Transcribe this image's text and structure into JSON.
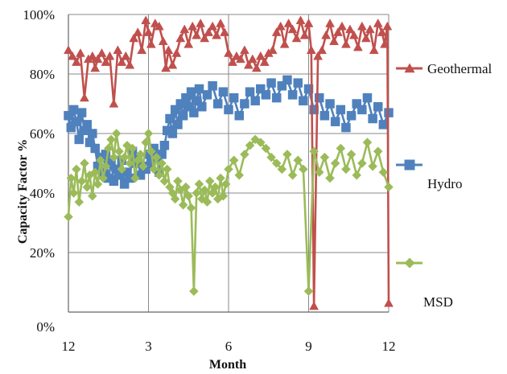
{
  "chart_data": {
    "type": "line",
    "xlabel": "Month",
    "ylabel": "Capacity Factor %",
    "x_ticks": [
      {
        "value": 0,
        "label": "12"
      },
      {
        "value": 3,
        "label": "3"
      },
      {
        "value": 6,
        "label": "6"
      },
      {
        "value": 9,
        "label": "9"
      },
      {
        "value": 12,
        "label": "12"
      }
    ],
    "y_tick_labels": [
      {
        "value": 0,
        "label": "0%"
      },
      {
        "value": 20,
        "label": "20%"
      },
      {
        "value": 40,
        "label": "40%"
      },
      {
        "value": 60,
        "label": "60%"
      },
      {
        "value": 80,
        "label": "80%"
      },
      {
        "value": 100,
        "label": "100%"
      }
    ],
    "y_gridlines": [
      20,
      40,
      60,
      80,
      100
    ],
    "xlim": [
      0,
      12
    ],
    "ylim": [
      0,
      100
    ],
    "grid": true,
    "legend_position": "right",
    "series": [
      {
        "name": "Geothermal",
        "color": "#C0504D",
        "marker": "triangle",
        "x": [
          0.0,
          0.15,
          0.3,
          0.45,
          0.6,
          0.75,
          0.9,
          1.0,
          1.1,
          1.25,
          1.4,
          1.55,
          1.7,
          1.85,
          2.0,
          2.15,
          2.3,
          2.45,
          2.6,
          2.75,
          2.9,
          3.0,
          3.1,
          3.25,
          3.4,
          3.55,
          3.65,
          3.75,
          3.9,
          4.05,
          4.2,
          4.35,
          4.5,
          4.65,
          4.8,
          4.95,
          5.1,
          5.25,
          5.4,
          5.55,
          5.7,
          5.85,
          6.0,
          6.15,
          6.3,
          6.45,
          6.6,
          6.75,
          6.9,
          7.05,
          7.2,
          7.35,
          7.5,
          7.65,
          7.8,
          7.95,
          8.1,
          8.25,
          8.4,
          8.55,
          8.7,
          8.85,
          9.0,
          9.1,
          9.2,
          9.35,
          9.5,
          9.65,
          9.8,
          9.95,
          10.1,
          10.25,
          10.4,
          10.55,
          10.7,
          10.85,
          11.0,
          11.15,
          11.3,
          11.45,
          11.6,
          11.75,
          11.85,
          11.95,
          12.0
        ],
        "values": [
          88,
          86,
          84,
          87,
          72,
          85,
          86,
          82,
          85,
          87,
          84,
          86,
          70,
          88,
          84,
          86,
          83,
          92,
          94,
          88,
          98,
          94,
          90,
          97,
          96,
          91,
          82,
          88,
          83,
          87,
          92,
          95,
          90,
          96,
          93,
          97,
          92,
          94,
          96,
          93,
          97,
          94,
          87,
          84,
          86,
          85,
          88,
          83,
          85,
          82,
          86,
          84,
          87,
          88,
          94,
          96,
          90,
          97,
          95,
          92,
          98,
          93,
          97,
          88,
          2,
          86,
          88,
          93,
          97,
          91,
          94,
          96,
          90,
          95,
          93,
          89,
          96,
          92,
          95,
          88,
          97,
          94,
          90,
          96,
          3
        ]
      },
      {
        "name": "Hydro",
        "color": "#4F81BD",
        "marker": "square",
        "x": [
          0.0,
          0.1,
          0.2,
          0.3,
          0.4,
          0.5,
          0.6,
          0.7,
          0.8,
          0.9,
          1.0,
          1.1,
          1.2,
          1.3,
          1.4,
          1.5,
          1.6,
          1.7,
          1.8,
          1.9,
          2.0,
          2.1,
          2.2,
          2.3,
          2.4,
          2.5,
          2.6,
          2.7,
          2.8,
          2.9,
          3.0,
          3.1,
          3.2,
          3.3,
          3.4,
          3.5,
          3.6,
          3.7,
          3.8,
          3.9,
          4.0,
          4.1,
          4.2,
          4.3,
          4.4,
          4.5,
          4.6,
          4.7,
          4.8,
          4.9,
          5.0,
          5.2,
          5.4,
          5.6,
          5.8,
          6.0,
          6.2,
          6.4,
          6.6,
          6.8,
          7.0,
          7.2,
          7.4,
          7.6,
          7.8,
          8.0,
          8.2,
          8.4,
          8.6,
          8.8,
          9.0,
          9.2,
          9.4,
          9.6,
          9.8,
          10.0,
          10.2,
          10.4,
          10.6,
          10.8,
          11.0,
          11.2,
          11.4,
          11.6,
          11.8,
          12.0
        ],
        "values": [
          66,
          62,
          68,
          64,
          58,
          67,
          61,
          63,
          57,
          60,
          55,
          49,
          52,
          47,
          53,
          45,
          50,
          44,
          48,
          46,
          51,
          43,
          47,
          45,
          54,
          50,
          52,
          46,
          49,
          48,
          53,
          50,
          55,
          52,
          47,
          53,
          56,
          61,
          65,
          60,
          68,
          63,
          70,
          66,
          72,
          69,
          74,
          67,
          71,
          75,
          69,
          73,
          76,
          70,
          74,
          68,
          72,
          66,
          70,
          74,
          71,
          75,
          73,
          77,
          72,
          76,
          78,
          73,
          77,
          71,
          75,
          68,
          72,
          66,
          70,
          64,
          68,
          62,
          66,
          70,
          68,
          72,
          65,
          69,
          63,
          67
        ]
      },
      {
        "name": "MSD",
        "color": "#9BBB59",
        "marker": "diamond",
        "x": [
          0.0,
          0.1,
          0.2,
          0.3,
          0.4,
          0.5,
          0.6,
          0.7,
          0.8,
          0.9,
          1.0,
          1.1,
          1.2,
          1.3,
          1.4,
          1.5,
          1.6,
          1.7,
          1.8,
          1.9,
          2.0,
          2.1,
          2.2,
          2.3,
          2.4,
          2.5,
          2.6,
          2.7,
          2.8,
          2.9,
          3.0,
          3.1,
          3.2,
          3.3,
          3.4,
          3.5,
          3.6,
          3.7,
          3.8,
          3.9,
          4.0,
          4.1,
          4.2,
          4.3,
          4.4,
          4.5,
          4.6,
          4.7,
          4.8,
          4.9,
          5.0,
          5.1,
          5.2,
          5.3,
          5.4,
          5.5,
          5.6,
          5.7,
          5.8,
          5.9,
          6.0,
          6.2,
          6.4,
          6.6,
          6.8,
          7.0,
          7.2,
          7.4,
          7.6,
          7.8,
          8.0,
          8.2,
          8.4,
          8.6,
          8.8,
          9.0,
          9.2,
          9.4,
          9.6,
          9.8,
          10.0,
          10.2,
          10.4,
          10.6,
          10.8,
          11.0,
          11.2,
          11.4,
          11.6,
          11.8,
          12.0
        ],
        "values": [
          32,
          45,
          40,
          48,
          37,
          44,
          50,
          42,
          46,
          39,
          47,
          43,
          51,
          45,
          49,
          55,
          58,
          52,
          60,
          54,
          48,
          52,
          56,
          50,
          55,
          45,
          51,
          53,
          49,
          57,
          60,
          54,
          48,
          52,
          46,
          50,
          44,
          48,
          42,
          40,
          38,
          44,
          41,
          36,
          42,
          39,
          35,
          7,
          40,
          43,
          38,
          41,
          37,
          44,
          40,
          42,
          38,
          45,
          39,
          43,
          48,
          51,
          46,
          53,
          56,
          58,
          57,
          55,
          52,
          50,
          48,
          53,
          46,
          51,
          48,
          7,
          54,
          47,
          52,
          45,
          50,
          55,
          48,
          53,
          46,
          50,
          57,
          49,
          54,
          47,
          42
        ]
      }
    ]
  }
}
